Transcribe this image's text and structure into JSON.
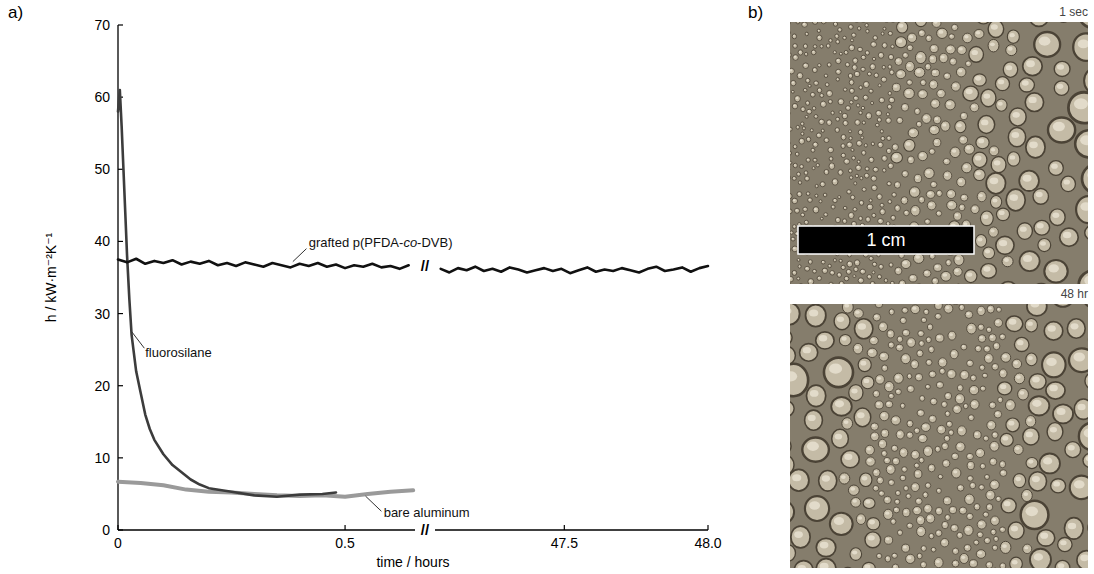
{
  "panel_labels": [
    "a)",
    "b)"
  ],
  "break_mark": "//",
  "chart_data": [
    {
      "type": "line",
      "xlabel": "time / hours",
      "ylabel": "h / kW·m⁻²K⁻¹",
      "xlim": [
        0,
        0.654
      ],
      "xticks": [
        0,
        0.5
      ],
      "ylim": [
        0,
        70
      ],
      "yticks": [
        0,
        10,
        20,
        30,
        40,
        50,
        60,
        70
      ],
      "series": [
        {
          "name": "grafted p(PFDA-co-DVB)",
          "color": "#111111",
          "x": [
            0,
            0.02,
            0.04,
            0.06,
            0.08,
            0.1,
            0.12,
            0.14,
            0.16,
            0.18,
            0.2,
            0.22,
            0.24,
            0.26,
            0.28,
            0.3,
            0.32,
            0.34,
            0.36,
            0.38,
            0.4,
            0.42,
            0.44,
            0.46,
            0.48,
            0.5,
            0.52,
            0.54,
            0.56,
            0.58,
            0.6,
            0.62,
            0.64
          ],
          "values": [
            37.5,
            37.1,
            37.6,
            36.9,
            37.3,
            37.0,
            37.4,
            36.8,
            37.2,
            36.9,
            37.3,
            36.7,
            37.0,
            36.6,
            37.1,
            36.8,
            36.5,
            37.0,
            36.7,
            36.4,
            36.9,
            36.6,
            37.0,
            36.5,
            36.8,
            36.3,
            36.7,
            36.5,
            36.9,
            36.4,
            36.6,
            36.2,
            36.7
          ]
        },
        {
          "name": "fluorosilane",
          "color": "#3c3c3c",
          "x": [
            0,
            0.004,
            0.008,
            0.012,
            0.016,
            0.02,
            0.025,
            0.03,
            0.04,
            0.05,
            0.06,
            0.07,
            0.08,
            0.1,
            0.12,
            0.14,
            0.16,
            0.18,
            0.2,
            0.25,
            0.3,
            0.35,
            0.4,
            0.45,
            0.48
          ],
          "values": [
            58,
            61,
            56,
            50,
            44,
            38,
            32,
            27,
            22,
            19,
            16,
            14,
            12.5,
            10.5,
            9,
            8,
            7,
            6.3,
            5.8,
            5.3,
            4.8,
            4.6,
            4.9,
            5.0,
            5.2
          ]
        },
        {
          "name": "bare aluminum",
          "color": "#9a9a9a",
          "x": [
            0,
            0.05,
            0.1,
            0.15,
            0.2,
            0.25,
            0.3,
            0.35,
            0.4,
            0.45,
            0.5,
            0.55,
            0.6,
            0.65
          ],
          "values": [
            6.7,
            6.5,
            6.2,
            5.6,
            5.3,
            5.2,
            5.0,
            4.8,
            4.7,
            4.8,
            4.6,
            5.0,
            5.3,
            5.5
          ]
        }
      ]
    },
    {
      "type": "line",
      "tick_labels": "x",
      "xlim": [
        47.05,
        48.0
      ],
      "xticks": [
        47.5,
        {
          "value": 48,
          "label": "48.0"
        }
      ],
      "ylim": [
        0,
        70
      ],
      "series": [
        {
          "color": "#111111",
          "x": [
            47.07,
            47.1,
            47.13,
            47.16,
            47.19,
            47.22,
            47.25,
            47.28,
            47.31,
            47.34,
            47.37,
            47.4,
            47.43,
            47.46,
            47.49,
            47.52,
            47.55,
            47.58,
            47.61,
            47.64,
            47.67,
            47.7,
            47.73,
            47.76,
            47.79,
            47.82,
            47.85,
            47.88,
            47.91,
            47.94,
            47.97,
            48.0
          ],
          "values": [
            36.2,
            35.7,
            36.3,
            36.0,
            36.5,
            35.9,
            36.2,
            35.8,
            36.4,
            36.1,
            35.7,
            36.0,
            36.3,
            35.9,
            36.2,
            35.6,
            36.0,
            36.4,
            35.8,
            36.1,
            35.9,
            36.3,
            36.0,
            35.7,
            36.2,
            36.5,
            35.9,
            36.1,
            36.4,
            35.8,
            36.3,
            36.6
          ]
        }
      ]
    }
  ],
  "photos": {
    "frames": [
      "1 sec",
      "48 hr"
    ],
    "scale_bar": "1 cm"
  }
}
